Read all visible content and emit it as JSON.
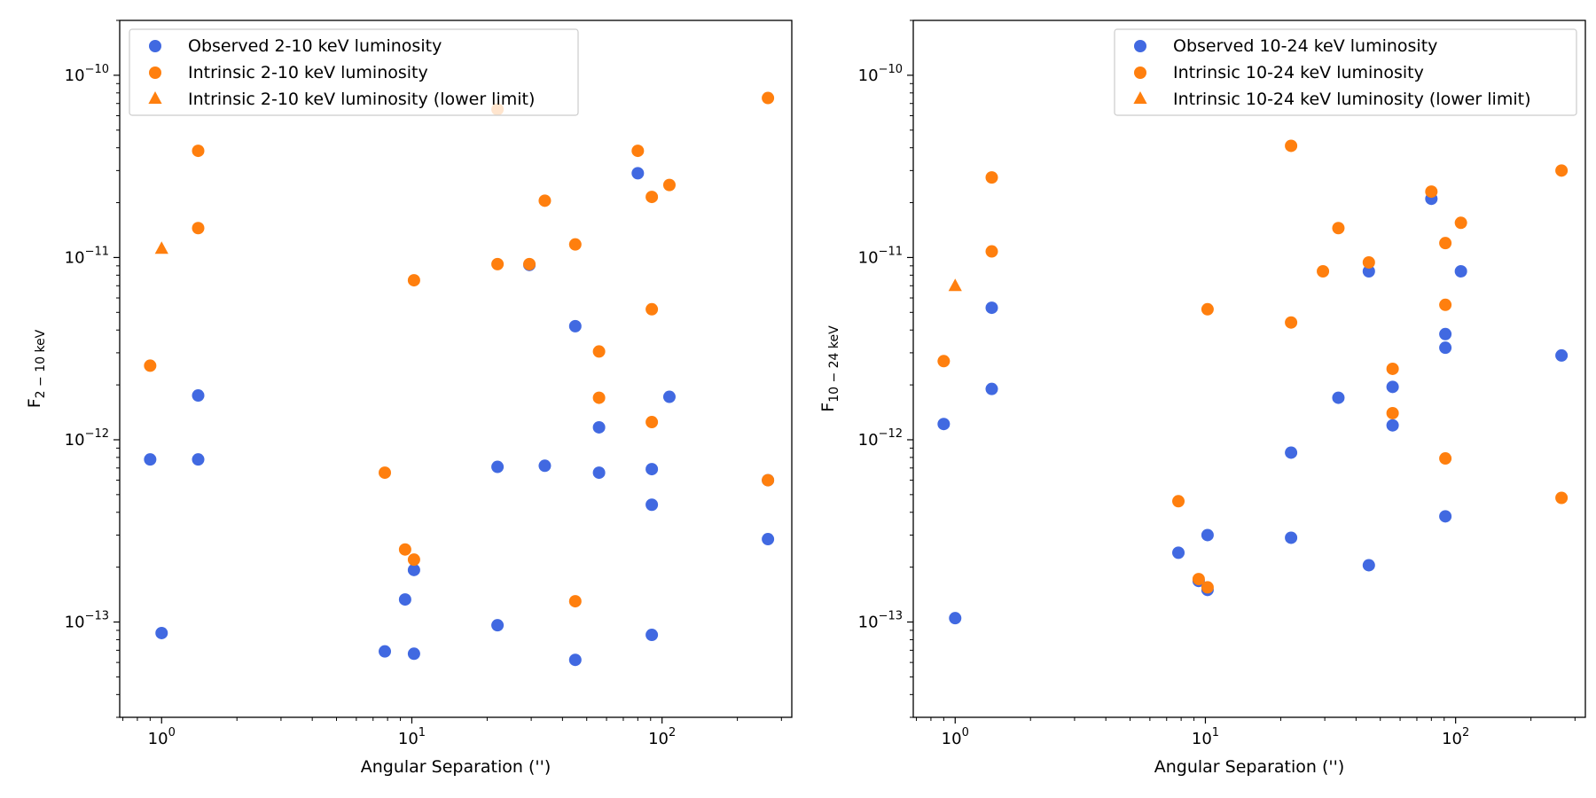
{
  "colors": {
    "observed": "#4169e1",
    "intrinsic": "#ff7f0e",
    "axis": "#000000",
    "legend_border": "#cccccc"
  },
  "chart_data": [
    {
      "type": "scatter",
      "title": "",
      "xlabel": "Angular Separation ('')",
      "ylabel_main": "F",
      "ylabel_sub": "2 − 10 keV",
      "x_scale": "log",
      "y_scale": "log",
      "xlim": [
        0.68,
        330
      ],
      "ylim": [
        3e-14,
        2e-10
      ],
      "x_ticks": [
        {
          "value": 1,
          "base": "10",
          "exp": "0"
        },
        {
          "value": 10,
          "base": "10",
          "exp": "1"
        },
        {
          "value": 100,
          "base": "10",
          "exp": "2"
        }
      ],
      "y_ticks": [
        {
          "value": 1e-13,
          "base": "10",
          "exp": "−13"
        },
        {
          "value": 1e-12,
          "base": "10",
          "exp": "−12"
        },
        {
          "value": 1e-11,
          "base": "10",
          "exp": "−11"
        },
        {
          "value": 1e-10,
          "base": "10",
          "exp": "−10"
        }
      ],
      "grid": false,
      "legend_position": "upper-left",
      "series": [
        {
          "name": "Observed 2-10 keV luminosity",
          "marker": "circle",
          "color": "#4169e1",
          "x": [
            0.9,
            1.0,
            1.4,
            1.4,
            7.8,
            9.4,
            10.2,
            10.2,
            22,
            22,
            29.5,
            34,
            45,
            45,
            56,
            56,
            80,
            91,
            91,
            91,
            107,
            265,
            265
          ],
          "y": [
            7.8e-13,
            8.7e-14,
            1.75e-12,
            7.8e-13,
            6.9e-14,
            1.33e-13,
            6.7e-14,
            1.93e-13,
            9.6e-14,
            7.1e-13,
            9.1e-12,
            7.2e-13,
            4.2e-12,
            6.2e-14,
            1.17e-12,
            6.6e-13,
            2.9e-11,
            6.9e-13,
            4.4e-13,
            8.5e-14,
            1.72e-12,
            2.85e-13,
            6e-13
          ]
        },
        {
          "name": "Intrinsic 2-10 keV luminosity",
          "marker": "circle",
          "color": "#ff7f0e",
          "x": [
            0.9,
            1.4,
            1.4,
            7.8,
            9.4,
            10.2,
            10.2,
            22,
            22,
            29.5,
            34,
            45,
            45,
            56,
            56,
            80,
            91,
            91,
            91,
            107,
            265,
            265
          ],
          "y": [
            2.55e-12,
            3.85e-11,
            1.45e-11,
            6.6e-13,
            2.5e-13,
            2.2e-13,
            7.5e-12,
            6.5e-11,
            9.2e-12,
            9.2e-12,
            2.05e-11,
            1.18e-11,
            1.3e-13,
            3.05e-12,
            1.7e-12,
            3.85e-11,
            2.15e-11,
            5.2e-12,
            1.25e-12,
            2.5e-11,
            7.5e-11,
            6e-13
          ]
        },
        {
          "name": "Intrinsic 2-10 keV luminosity (lower limit)",
          "marker": "triangle",
          "color": "#ff7f0e",
          "x": [
            1.0
          ],
          "y": [
            1.12e-11
          ]
        }
      ]
    },
    {
      "type": "scatter",
      "title": "",
      "xlabel": "Angular Separation ('')",
      "ylabel_main": "F",
      "ylabel_sub": "10 − 24 keV",
      "x_scale": "log",
      "y_scale": "log",
      "xlim": [
        0.68,
        330
      ],
      "ylim": [
        3e-14,
        2e-10
      ],
      "x_ticks": [
        {
          "value": 1,
          "base": "10",
          "exp": "0"
        },
        {
          "value": 10,
          "base": "10",
          "exp": "1"
        },
        {
          "value": 100,
          "base": "10",
          "exp": "2"
        }
      ],
      "y_ticks": [
        {
          "value": 1e-13,
          "base": "10",
          "exp": "−13"
        },
        {
          "value": 1e-12,
          "base": "10",
          "exp": "−12"
        },
        {
          "value": 1e-11,
          "base": "10",
          "exp": "−11"
        },
        {
          "value": 1e-10,
          "base": "10",
          "exp": "−10"
        }
      ],
      "grid": false,
      "legend_position": "upper-right",
      "series": [
        {
          "name": "Observed 10-24 keV luminosity",
          "marker": "circle",
          "color": "#4169e1",
          "x": [
            0.9,
            1.0,
            1.4,
            1.4,
            7.8,
            9.4,
            10.2,
            10.2,
            22,
            22,
            34,
            45,
            45,
            56,
            56,
            80,
            91,
            91,
            91,
            105,
            265
          ],
          "y": [
            1.22e-12,
            1.05e-13,
            5.3e-12,
            1.9e-12,
            2.4e-13,
            1.68e-13,
            1.5e-13,
            3e-13,
            8.5e-13,
            2.9e-13,
            1.7e-12,
            8.4e-12,
            2.05e-13,
            1.95e-12,
            1.2e-12,
            2.1e-11,
            3.8e-12,
            3.2e-12,
            3.8e-13,
            8.4e-12,
            2.9e-12
          ]
        },
        {
          "name": "Intrinsic 10-24 keV luminosity",
          "marker": "circle",
          "color": "#ff7f0e",
          "x": [
            0.9,
            1.4,
            1.4,
            7.8,
            9.4,
            10.2,
            10.2,
            22,
            22,
            29.5,
            34,
            45,
            56,
            56,
            80,
            91,
            91,
            91,
            105,
            265,
            265
          ],
          "y": [
            2.7e-12,
            2.75e-11,
            1.08e-11,
            4.6e-13,
            1.72e-13,
            1.55e-13,
            5.2e-12,
            4.1e-11,
            4.4e-12,
            8.4e-12,
            1.45e-11,
            9.4e-12,
            2.45e-12,
            1.4e-12,
            2.3e-11,
            1.2e-11,
            5.5e-12,
            7.9e-13,
            1.55e-11,
            3e-11,
            4.8e-13
          ]
        },
        {
          "name": "Intrinsic 10-24 keV luminosity (lower limit)",
          "marker": "triangle",
          "color": "#ff7f0e",
          "x": [
            1.0
          ],
          "y": [
            7e-12
          ]
        }
      ]
    }
  ]
}
